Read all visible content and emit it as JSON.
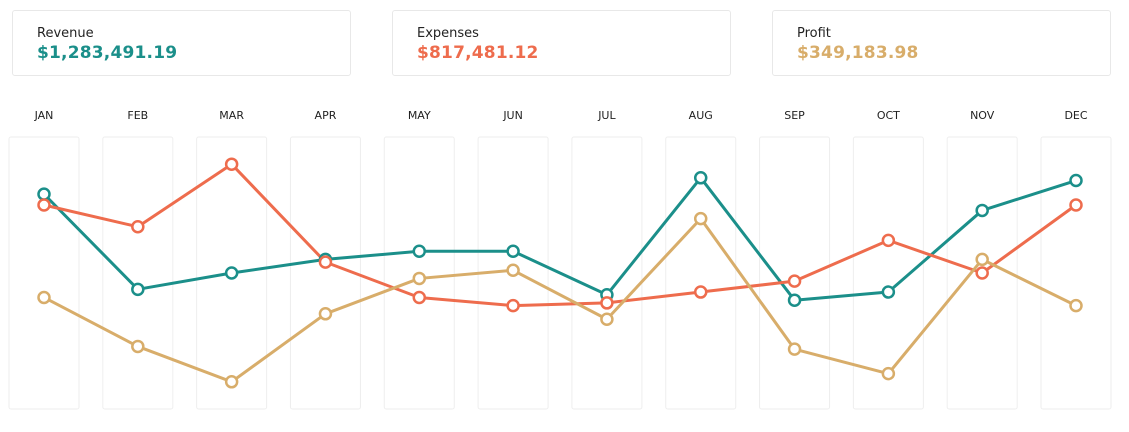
{
  "summary": {
    "revenue": {
      "label": "Revenue",
      "value": "$1,283,491.19",
      "color": "#1b8f8a"
    },
    "expenses": {
      "label": "Expenses",
      "value": "$817,481.12",
      "color": "#ee6c4d"
    },
    "profit": {
      "label": "Profit",
      "value": "$349,183.98",
      "color": "#d8ad6a"
    }
  },
  "chart_data": {
    "type": "line",
    "categories": [
      "JAN",
      "FEB",
      "MAR",
      "APR",
      "MAY",
      "JUN",
      "JUL",
      "AUG",
      "SEP",
      "OCT",
      "NOV",
      "DEC"
    ],
    "ylim": [
      0,
      100
    ],
    "grid": false,
    "series": [
      {
        "name": "Revenue",
        "color": "#1b8f8a",
        "values": [
          79,
          44,
          50,
          55,
          58,
          58,
          42,
          85,
          40,
          43,
          73,
          84
        ]
      },
      {
        "name": "Expenses",
        "color": "#ee6c4d",
        "values": [
          75,
          67,
          90,
          54,
          41,
          38,
          39,
          43,
          47,
          62,
          50,
          75
        ]
      },
      {
        "name": "Profit",
        "color": "#d8ad6a",
        "values": [
          41,
          23,
          10,
          35,
          48,
          51,
          33,
          70,
          22,
          13,
          55,
          38
        ]
      }
    ]
  }
}
